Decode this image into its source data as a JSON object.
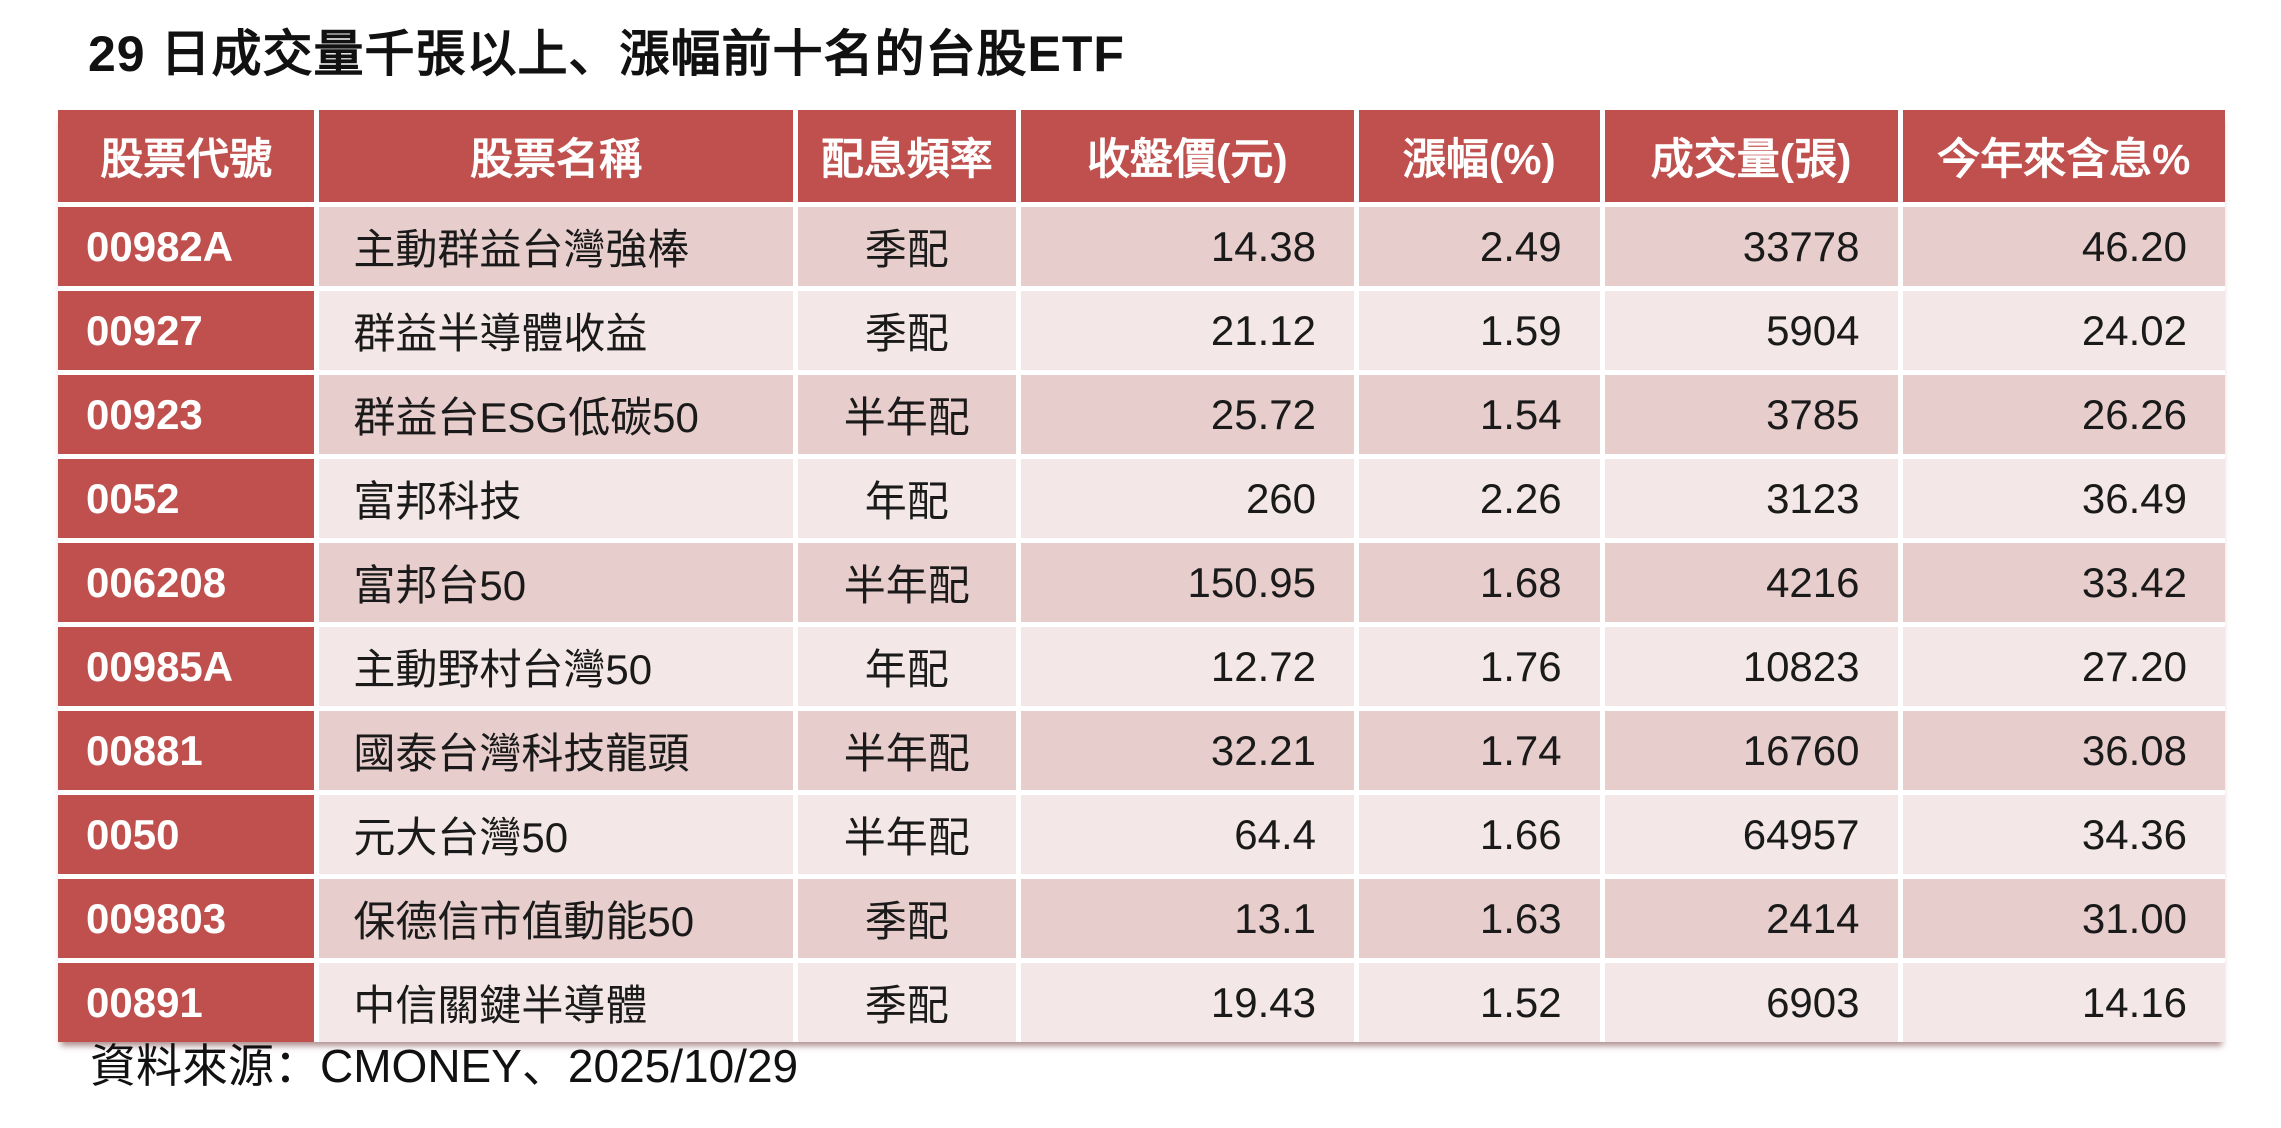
{
  "title": "29 日成交量千張以上、漲幅前十名的台股ETF",
  "footer": {
    "source_text": "資料來源：CMONEY、2025/10/29"
  },
  "colors": {
    "header_bg": "#c0504d",
    "code_column_bg": "#c0504d",
    "row_odd_bg": "#e7cecc",
    "row_even_bg": "#f3e8e7",
    "header_text": "#ffffff",
    "body_text": "#1a1a1a",
    "gridline": "#ffffff"
  },
  "chart_data": {
    "type": "table",
    "title": "29 日成交量千張以上、漲幅前十名的台股ETF",
    "columns": [
      "股票代號",
      "股票名稱",
      "配息頻率",
      "收盤價(元)",
      "漲幅(%)",
      "成交量(張)",
      "今年來含息%"
    ],
    "column_align": [
      "left",
      "left",
      "center",
      "right",
      "right",
      "right",
      "right"
    ],
    "rows": [
      [
        "00982A",
        "主動群益台灣強棒",
        "季配",
        "14.38",
        "2.49",
        "33778",
        "46.20"
      ],
      [
        "00927",
        "群益半導體收益",
        "季配",
        "21.12",
        "1.59",
        "5904",
        "24.02"
      ],
      [
        "00923",
        "群益台ESG低碳50",
        "半年配",
        "25.72",
        "1.54",
        "3785",
        "26.26"
      ],
      [
        "0052",
        "富邦科技",
        "年配",
        "260",
        "2.26",
        "3123",
        "36.49"
      ],
      [
        "006208",
        "富邦台50",
        "半年配",
        "150.95",
        "1.68",
        "4216",
        "33.42"
      ],
      [
        "00985A",
        "主動野村台灣50",
        "年配",
        "12.72",
        "1.76",
        "10823",
        "27.20"
      ],
      [
        "00881",
        "國泰台灣科技龍頭",
        "半年配",
        "32.21",
        "1.74",
        "16760",
        "36.08"
      ],
      [
        "0050",
        "元大台灣50",
        "半年配",
        "64.4",
        "1.66",
        "64957",
        "34.36"
      ],
      [
        "009803",
        "保德信市值動能50",
        "季配",
        "13.1",
        "1.63",
        "2414",
        "31.00"
      ],
      [
        "00891",
        "中信關鍵半導體",
        "季配",
        "19.43",
        "1.52",
        "6903",
        "14.16"
      ]
    ],
    "source": "資料來源：CMONEY、2025/10/29"
  }
}
